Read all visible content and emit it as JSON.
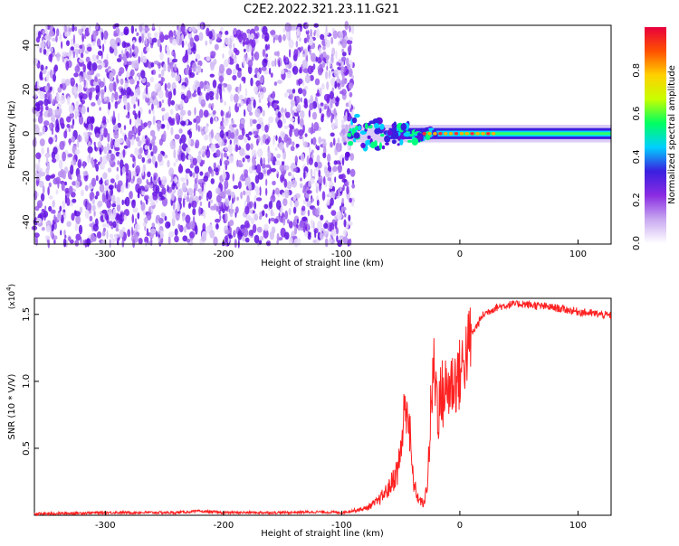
{
  "title": "C2E2.2022.321.23.11.G21",
  "chart_data": [
    {
      "type": "heatmap",
      "title": "C2E2.2022.321.23.11.G21",
      "xlabel": "Height of straight line (km)",
      "ylabel": "Frequency (Hz)",
      "xlim": [
        -360,
        128
      ],
      "ylim": [
        -50,
        49
      ],
      "x_ticks": [
        -300,
        -200,
        -100,
        0,
        100
      ],
      "y_ticks": [
        -40,
        -20,
        0,
        20,
        40
      ],
      "grid": false,
      "description_values": {
        "noise_region_x": [
          -360,
          -90
        ],
        "signal_region_x": [
          -100,
          128
        ],
        "signal_center_frequency_hz": 0
      },
      "colorbar": {
        "label": "Normalized spectral amplitude",
        "range": [
          0.0,
          1.0
        ],
        "ticks": [
          0.0,
          0.2,
          0.4,
          0.6,
          0.8
        ],
        "colormap": [
          "#ffffff",
          "#c8a8f0",
          "#8a2be2",
          "#3a1fe0",
          "#00d0ff",
          "#00ff60",
          "#c8ff00",
          "#ffd000",
          "#ff5000",
          "#e8003c"
        ]
      }
    },
    {
      "type": "line",
      "xlabel": "Height of straight line (km)",
      "ylabel": "SNR (10 * V/V)",
      "scale_label": "(x10^4)",
      "xlim": [
        -360,
        128
      ],
      "ylim": [
        0,
        1.62
      ],
      "x_ticks": [
        -300,
        -200,
        -100,
        0,
        100
      ],
      "y_ticks": [
        0.5,
        1.0,
        1.5
      ],
      "grid": false,
      "color": "#ff2020",
      "series": [
        {
          "x": [
            -360,
            -330,
            -300,
            -270,
            -240,
            -220,
            -200,
            -180,
            -150,
            -120,
            -100,
            -80,
            -70,
            -60,
            -52,
            -48,
            -45,
            -42,
            -40,
            -38,
            -35,
            -30,
            -27,
            -24,
            -22,
            -20,
            -18,
            -15,
            -10,
            -5,
            0,
            5,
            10,
            20,
            30,
            40,
            50,
            60,
            80,
            100,
            128
          ],
          "y": [
            0.01,
            0.015,
            0.02,
            0.02,
            0.02,
            0.03,
            0.02,
            0.02,
            0.02,
            0.025,
            0.02,
            0.05,
            0.1,
            0.2,
            0.35,
            0.65,
            0.9,
            0.55,
            0.3,
            0.2,
            0.12,
            0.08,
            0.3,
            0.85,
            1.1,
            0.95,
            0.8,
            0.9,
            0.95,
            1.0,
            1.05,
            1.2,
            1.35,
            1.5,
            1.55,
            1.57,
            1.58,
            1.57,
            1.55,
            1.52,
            1.49
          ]
        }
      ]
    }
  ],
  "colors": {
    "line": "#ff2020",
    "axis": "#000000"
  }
}
